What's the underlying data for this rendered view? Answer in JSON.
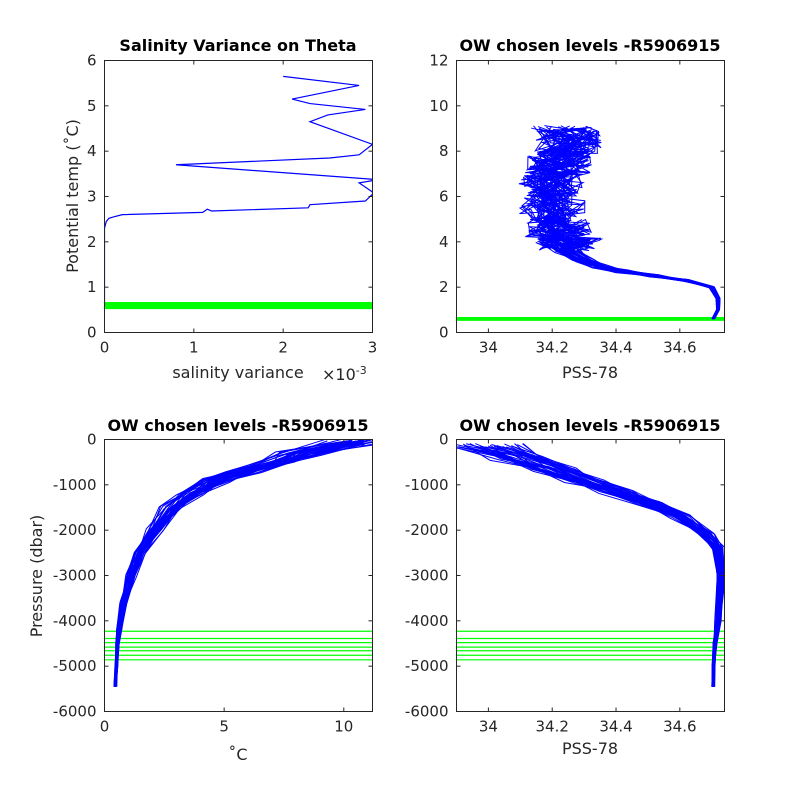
{
  "colors": {
    "profile": "#0000ff",
    "chosen_level": "#00ff00",
    "axis": "#262626"
  },
  "chart_data": [
    {
      "type": "line",
      "title": "Salinity Variance on Theta",
      "xlabel": "salinity variance",
      "x_exponent_label": "×10",
      "x_exponent_power": "-3",
      "ylabel": "Potential temp (˚C)",
      "xlim": [
        0,
        3
      ],
      "ylim": [
        0,
        6
      ],
      "x_ticks": [
        0,
        1,
        2,
        3
      ],
      "x_tick_labels": [
        "0",
        "1",
        "2",
        "3"
      ],
      "y_ticks": [
        0,
        1,
        2,
        3,
        4,
        5,
        6
      ],
      "y_tick_labels": [
        "0",
        "1",
        "2",
        "3",
        "4",
        "5",
        "6"
      ],
      "series": [
        {
          "x": [
            0.0,
            0.0,
            0.0,
            0.02,
            0.05,
            0.1,
            0.2,
            1.1,
            1.15,
            1.2,
            2.28,
            2.3,
            2.92,
            3.0,
            3.0,
            2.85,
            3.0,
            3.0,
            0.8,
            2.52,
            2.85,
            3.0,
            2.3,
            2.5,
            2.92,
            2.3,
            2.1,
            2.85,
            2.0
          ],
          "y": [
            0.6,
            0.8,
            2.3,
            2.45,
            2.52,
            2.55,
            2.6,
            2.65,
            2.72,
            2.68,
            2.75,
            2.82,
            2.9,
            3.05,
            3.1,
            3.3,
            3.35,
            3.38,
            3.7,
            3.85,
            3.92,
            4.15,
            4.65,
            4.8,
            4.92,
            5.05,
            5.15,
            5.45,
            5.65
          ]
        }
      ],
      "chosen_levels_y": [
        0.55,
        0.58,
        0.61,
        0.64
      ]
    },
    {
      "type": "scatter",
      "title": "OW chosen levels -R5906915",
      "xlabel": "PSS-78",
      "ylabel": "",
      "xlim": [
        33.9,
        34.74
      ],
      "ylim": [
        0,
        12
      ],
      "x_ticks": [
        34,
        34.2,
        34.4,
        34.6
      ],
      "x_tick_labels": [
        "34",
        "34.2",
        "34.4",
        "34.6"
      ],
      "y_ticks": [
        0,
        2,
        4,
        6,
        8,
        10,
        12
      ],
      "y_tick_labels": [
        "0",
        "2",
        "4",
        "6",
        "8",
        "10",
        "12"
      ],
      "profile_count": 40,
      "profile_mean": {
        "salinity": [
          34.705,
          34.72,
          34.72,
          34.7,
          34.62,
          34.52,
          34.42,
          34.35,
          34.3,
          34.25,
          34.22,
          34.2,
          34.2,
          34.22,
          34.25,
          34.25
        ],
        "theta": [
          0.6,
          1.0,
          1.5,
          2.0,
          2.3,
          2.5,
          2.7,
          2.9,
          3.2,
          3.6,
          4.2,
          5.0,
          6.0,
          7.0,
          8.0,
          9.0
        ]
      },
      "chosen_levels_y": [
        0.58,
        0.6,
        0.62
      ]
    },
    {
      "type": "line",
      "title": "OW chosen levels -R5906915",
      "xlabel": "˚C",
      "ylabel": "Pressure (dbar)",
      "xlim": [
        0,
        11.2
      ],
      "ylim": [
        -6000,
        0
      ],
      "x_ticks": [
        0,
        5,
        10
      ],
      "x_tick_labels": [
        "0",
        "5",
        "10"
      ],
      "y_ticks": [
        -6000,
        -5000,
        -4000,
        -3000,
        -2000,
        -1000,
        0
      ],
      "y_tick_labels": [
        "-6000",
        "-5000",
        "-4000",
        "-3000",
        "-2000",
        "-1000",
        "0"
      ],
      "profile_count": 40,
      "profile_mean": {
        "x": [
          0.45,
          0.5,
          0.55,
          0.6,
          0.8,
          1.1,
          1.5,
          2.1,
          2.8,
          3.6,
          4.6,
          5.8,
          7.2,
          8.2,
          10.5
        ],
        "y": [
          -5450,
          -5000,
          -4500,
          -4200,
          -3600,
          -3000,
          -2500,
          -2000,
          -1500,
          -1200,
          -900,
          -700,
          -500,
          -300,
          -50
        ]
      },
      "chosen_levels_y": [
        -4230,
        -4390,
        -4480,
        -4580,
        -4660,
        -4760,
        -4860
      ]
    },
    {
      "type": "line",
      "title": "OW chosen levels -R5906915",
      "xlabel": "PSS-78",
      "ylabel": "",
      "xlim": [
        33.9,
        34.74
      ],
      "ylim": [
        -6000,
        0
      ],
      "x_ticks": [
        34,
        34.2,
        34.4,
        34.6
      ],
      "x_tick_labels": [
        "34",
        "34.2",
        "34.4",
        "34.6"
      ],
      "y_ticks": [
        -6000,
        -5000,
        -4000,
        -3000,
        -2000,
        -1000,
        0
      ],
      "y_tick_labels": [
        "-6000",
        "-5000",
        "-4000",
        "-3000",
        "-2000",
        "-1000",
        "0"
      ],
      "profile_count": 40,
      "profile_mean": {
        "x": [
          34.705,
          34.705,
          34.71,
          34.72,
          34.73,
          34.72,
          34.68,
          34.6,
          34.5,
          34.4,
          34.3,
          34.2,
          34.1,
          34.0
        ],
        "y": [
          -5450,
          -5000,
          -4500,
          -4000,
          -3000,
          -2400,
          -2100,
          -1700,
          -1400,
          -1150,
          -900,
          -650,
          -400,
          -150
        ]
      },
      "chosen_levels_y": [
        -4230,
        -4390,
        -4480,
        -4580,
        -4660,
        -4760,
        -4860
      ]
    }
  ]
}
